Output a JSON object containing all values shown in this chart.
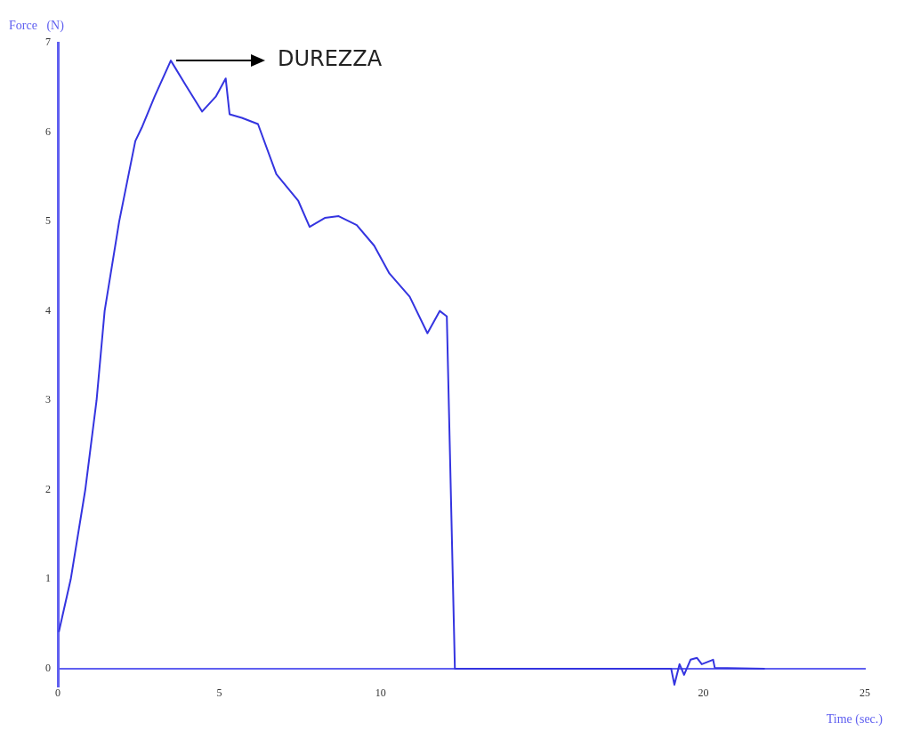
{
  "chart_data": {
    "type": "line",
    "xlabel": "Time (sec.)",
    "ylabel": "Force   (N)",
    "annotations": [
      {
        "text": "DUREZZA",
        "x": 3.5,
        "y": 6.8
      }
    ],
    "xlim": [
      0,
      25
    ],
    "xticks": [
      0,
      5,
      10,
      20,
      25
    ],
    "ylim": [
      -0.2,
      7
    ],
    "yticks": [
      0,
      1,
      2,
      3,
      4,
      5,
      6,
      7
    ],
    "grid": false,
    "legend": false,
    "marker": "none",
    "line_style": "solid",
    "series": [
      {
        "color": "#3434e0",
        "x": [
          0.03,
          0.4,
          0.85,
          1.2,
          1.45,
          1.9,
          2.4,
          2.6,
          3.0,
          3.5,
          3.97,
          4.47,
          4.9,
          5.2,
          5.32,
          5.7,
          6.2,
          6.77,
          7.45,
          7.8,
          8.27,
          8.7,
          9.26,
          9.8,
          10.27,
          10.9,
          11.45,
          11.83,
          12.05,
          12.3,
          15.0,
          18.2,
          19.0,
          19.1,
          19.26,
          19.4,
          19.6,
          19.8,
          19.95,
          20.3,
          20.35,
          21.9
        ],
        "values": [
          0.41,
          1.0,
          2.0,
          3.0,
          4.0,
          5.0,
          5.9,
          6.05,
          6.4,
          6.8,
          6.52,
          6.23,
          6.4,
          6.6,
          6.2,
          6.16,
          6.09,
          5.53,
          5.23,
          4.94,
          5.04,
          5.06,
          4.96,
          4.73,
          4.42,
          4.16,
          3.75,
          4.0,
          3.94,
          0,
          0,
          0,
          0,
          -0.18,
          0.05,
          -0.07,
          0.1,
          0.12,
          0.05,
          0.1,
          0.01,
          0
        ]
      }
    ]
  }
}
